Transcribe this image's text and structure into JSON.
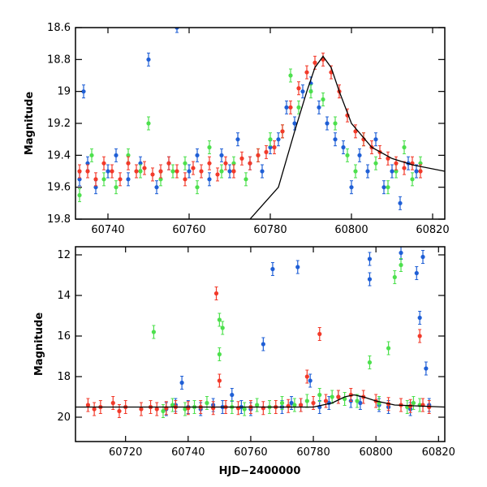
{
  "chart_data": [
    {
      "type": "scatter",
      "panel": "top",
      "title": "",
      "xlabel": "",
      "ylabel": "Magnitude",
      "xlim": [
        60732,
        60823
      ],
      "ylim": [
        19.8,
        18.6
      ],
      "y_inverted": true,
      "x_ticks": [
        60740,
        60760,
        60780,
        60800,
        60820
      ],
      "x_tick_labels": [
        "60740",
        "60760",
        "60780",
        "60800",
        "60820"
      ],
      "y_ticks": [
        18.6,
        18.8,
        19,
        19.2,
        19.4,
        19.6,
        19.8
      ],
      "y_tick_labels": [
        "18.6",
        "18.8",
        "19",
        "19.2",
        "19.4",
        "19.6",
        "19.8"
      ],
      "grid": false,
      "colors": {
        "blue": "#1f5fd6",
        "green": "#4de04d",
        "red": "#f23a2a",
        "model": "#000000"
      },
      "model_curve": {
        "x": [
          60732,
          60760,
          60775,
          60782,
          60786,
          60789,
          60791,
          60793,
          60795,
          60797,
          60800,
          60805,
          60810,
          60815,
          60823
        ],
        "y": [
          19.8,
          19.8,
          19.8,
          19.6,
          19.25,
          19.0,
          18.85,
          18.78,
          18.85,
          19.0,
          19.2,
          19.35,
          19.42,
          19.46,
          19.5
        ]
      },
      "series": [
        {
          "color": "blue",
          "points": [
            [
              60733,
              19.55
            ],
            [
              60734,
              19.0
            ],
            [
              60735,
              19.45
            ],
            [
              60737,
              19.6
            ],
            [
              60740,
              19.5
            ],
            [
              60742,
              19.4
            ],
            [
              60745,
              19.55
            ],
            [
              60748,
              19.45
            ],
            [
              60750,
              18.8
            ],
            [
              60752,
              19.6
            ],
            [
              60755,
              19.45
            ],
            [
              60757,
              18.6
            ],
            [
              60760,
              19.5
            ],
            [
              60762,
              19.4
            ],
            [
              60765,
              19.55
            ],
            [
              60768,
              19.4
            ],
            [
              60770,
              19.5
            ],
            [
              60772,
              19.3
            ],
            [
              60775,
              19.45
            ],
            [
              60778,
              19.5
            ],
            [
              60780,
              19.35
            ],
            [
              60782,
              19.3
            ],
            [
              60784,
              19.1
            ],
            [
              60786,
              19.2
            ],
            [
              60788,
              19.0
            ],
            [
              60790,
              18.95
            ],
            [
              60792,
              19.1
            ],
            [
              60794,
              19.2
            ],
            [
              60796,
              19.3
            ],
            [
              60798,
              19.35
            ],
            [
              60800,
              19.6
            ],
            [
              60802,
              19.4
            ],
            [
              60804,
              19.5
            ],
            [
              60806,
              19.3
            ],
            [
              60808,
              19.6
            ],
            [
              60810,
              19.5
            ],
            [
              60812,
              19.7
            ],
            [
              60814,
              19.45
            ],
            [
              60816,
              19.5
            ]
          ]
        },
        {
          "color": "green",
          "points": [
            [
              60733,
              19.65
            ],
            [
              60736,
              19.4
            ],
            [
              60739,
              19.55
            ],
            [
              60742,
              19.6
            ],
            [
              60745,
              19.4
            ],
            [
              60748,
              19.5
            ],
            [
              60750,
              19.2
            ],
            [
              60753,
              19.55
            ],
            [
              60756,
              19.5
            ],
            [
              60759,
              19.45
            ],
            [
              60762,
              19.6
            ],
            [
              60765,
              19.35
            ],
            [
              60768,
              19.5
            ],
            [
              60771,
              19.45
            ],
            [
              60774,
              19.55
            ],
            [
              60777,
              19.4
            ],
            [
              60780,
              19.3
            ],
            [
              60783,
              19.25
            ],
            [
              60785,
              18.9
            ],
            [
              60787,
              19.1
            ],
            [
              60790,
              19.0
            ],
            [
              60793,
              19.05
            ],
            [
              60796,
              19.2
            ],
            [
              60799,
              19.4
            ],
            [
              60801,
              19.5
            ],
            [
              60803,
              19.3
            ],
            [
              60806,
              19.45
            ],
            [
              60809,
              19.6
            ],
            [
              60811,
              19.5
            ],
            [
              60813,
              19.35
            ],
            [
              60815,
              19.55
            ],
            [
              60817,
              19.45
            ]
          ]
        },
        {
          "color": "red",
          "points": [
            [
              60733,
              19.5
            ],
            [
              60735,
              19.5
            ],
            [
              60737,
              19.55
            ],
            [
              60739,
              19.45
            ],
            [
              60741,
              19.5
            ],
            [
              60743,
              19.55
            ],
            [
              60745,
              19.45
            ],
            [
              60747,
              19.5
            ],
            [
              60749,
              19.48
            ],
            [
              60751,
              19.52
            ],
            [
              60753,
              19.5
            ],
            [
              60755,
              19.45
            ],
            [
              60757,
              19.5
            ],
            [
              60759,
              19.55
            ],
            [
              60761,
              19.48
            ],
            [
              60763,
              19.5
            ],
            [
              60765,
              19.45
            ],
            [
              60767,
              19.52
            ],
            [
              60769,
              19.45
            ],
            [
              60771,
              19.5
            ],
            [
              60773,
              19.42
            ],
            [
              60775,
              19.45
            ],
            [
              60777,
              19.4
            ],
            [
              60779,
              19.38
            ],
            [
              60781,
              19.35
            ],
            [
              60783,
              19.25
            ],
            [
              60785,
              19.1
            ],
            [
              60787,
              18.98
            ],
            [
              60789,
              18.88
            ],
            [
              60791,
              18.82
            ],
            [
              60793,
              18.8
            ],
            [
              60795,
              18.88
            ],
            [
              60797,
              19.0
            ],
            [
              60799,
              19.15
            ],
            [
              60801,
              19.25
            ],
            [
              60803,
              19.3
            ],
            [
              60805,
              19.35
            ],
            [
              60807,
              19.38
            ],
            [
              60809,
              19.42
            ],
            [
              60811,
              19.45
            ],
            [
              60813,
              19.48
            ],
            [
              60815,
              19.45
            ],
            [
              60817,
              19.5
            ]
          ]
        }
      ]
    },
    {
      "type": "scatter",
      "panel": "bottom",
      "title": "",
      "xlabel": "HJD−2400000",
      "ylabel": "Magnitude",
      "xlim": [
        60704,
        60822
      ],
      "ylim": [
        21.2,
        11.6
      ],
      "y_inverted": true,
      "x_ticks": [
        60720,
        60740,
        60760,
        60780,
        60800,
        60820
      ],
      "x_tick_labels": [
        "60720",
        "60740",
        "60760",
        "60780",
        "60800",
        "60820"
      ],
      "y_ticks": [
        12,
        14,
        16,
        18,
        20
      ],
      "y_tick_labels": [
        "12",
        "14",
        "16",
        "18",
        "20"
      ],
      "grid": false,
      "colors": {
        "blue": "#1f5fd6",
        "green": "#4de04d",
        "red": "#f23a2a",
        "model": "#000000"
      },
      "model_curve": {
        "x": [
          60704,
          60780,
          60786,
          60790,
          60793,
          60796,
          60800,
          60806,
          60822
        ],
        "y": [
          19.5,
          19.5,
          19.3,
          19.0,
          18.9,
          19.0,
          19.2,
          19.4,
          19.5
        ]
      },
      "series": [
        {
          "color": "blue",
          "points": [
            [
              60733,
              19.6
            ],
            [
              60736,
              19.4
            ],
            [
              60738,
              18.3
            ],
            [
              60740,
              19.5
            ],
            [
              60744,
              19.6
            ],
            [
              60748,
              19.4
            ],
            [
              60751,
              19.5
            ],
            [
              60754,
              18.9
            ],
            [
              60757,
              19.5
            ],
            [
              60760,
              19.6
            ],
            [
              60764,
              16.4
            ],
            [
              60767,
              12.7
            ],
            [
              60770,
              19.5
            ],
            [
              60773,
              19.3
            ],
            [
              60775,
              12.6
            ],
            [
              60776,
              19.4
            ],
            [
              60779,
              18.2
            ],
            [
              60782,
              19.5
            ],
            [
              60785,
              19.3
            ],
            [
              60788,
              19.0
            ],
            [
              60792,
              19.2
            ],
            [
              60795,
              19.3
            ],
            [
              60798,
              12.2
            ],
            [
              60798,
              13.2
            ],
            [
              60801,
              19.4
            ],
            [
              60804,
              19.5
            ],
            [
              60808,
              11.9
            ],
            [
              60811,
              19.6
            ],
            [
              60813,
              12.9
            ],
            [
              60814,
              15.1
            ],
            [
              60815,
              12.1
            ],
            [
              60816,
              17.6
            ],
            [
              60817,
              19.4
            ]
          ]
        },
        {
          "color": "green",
          "points": [
            [
              60729,
              15.8
            ],
            [
              60732,
              19.7
            ],
            [
              60735,
              19.4
            ],
            [
              60739,
              19.6
            ],
            [
              60742,
              19.5
            ],
            [
              60746,
              19.3
            ],
            [
              60750,
              16.9
            ],
            [
              60750,
              15.2
            ],
            [
              60751,
              15.6
            ],
            [
              60754,
              19.5
            ],
            [
              60758,
              19.6
            ],
            [
              60762,
              19.4
            ],
            [
              60766,
              19.5
            ],
            [
              60770,
              19.3
            ],
            [
              60774,
              19.4
            ],
            [
              60778,
              19.2
            ],
            [
              60782,
              18.9
            ],
            [
              60786,
              19.0
            ],
            [
              60790,
              19.1
            ],
            [
              60794,
              19.2
            ],
            [
              60798,
              17.3
            ],
            [
              60801,
              19.3
            ],
            [
              60804,
              16.6
            ],
            [
              60806,
              13.1
            ],
            [
              60808,
              12.5
            ],
            [
              60810,
              19.5
            ],
            [
              60812,
              19.3
            ],
            [
              60814,
              19.4
            ]
          ]
        },
        {
          "color": "red",
          "points": [
            [
              60708,
              19.4
            ],
            [
              60710,
              19.6
            ],
            [
              60712,
              19.5
            ],
            [
              60716,
              19.3
            ],
            [
              60718,
              19.7
            ],
            [
              60720,
              19.5
            ],
            [
              60725,
              19.6
            ],
            [
              60728,
              19.5
            ],
            [
              60730,
              19.6
            ],
            [
              60733,
              19.55
            ],
            [
              60736,
              19.5
            ],
            [
              60740,
              19.55
            ],
            [
              60744,
              19.5
            ],
            [
              60748,
              19.55
            ],
            [
              60749,
              13.9
            ],
            [
              60750,
              18.2
            ],
            [
              60752,
              19.5
            ],
            [
              60756,
              19.55
            ],
            [
              60760,
              19.5
            ],
            [
              60764,
              19.55
            ],
            [
              60768,
              19.5
            ],
            [
              60772,
              19.45
            ],
            [
              60776,
              19.4
            ],
            [
              60778,
              18.0
            ],
            [
              60780,
              19.3
            ],
            [
              60782,
              15.9
            ],
            [
              60784,
              19.2
            ],
            [
              60788,
              19.0
            ],
            [
              60792,
              18.9
            ],
            [
              60796,
              19.0
            ],
            [
              60800,
              19.2
            ],
            [
              60804,
              19.35
            ],
            [
              60808,
              19.4
            ],
            [
              60811,
              19.45
            ],
            [
              60814,
              16.0
            ],
            [
              60815,
              19.4
            ],
            [
              60817,
              19.5
            ]
          ]
        }
      ]
    }
  ]
}
